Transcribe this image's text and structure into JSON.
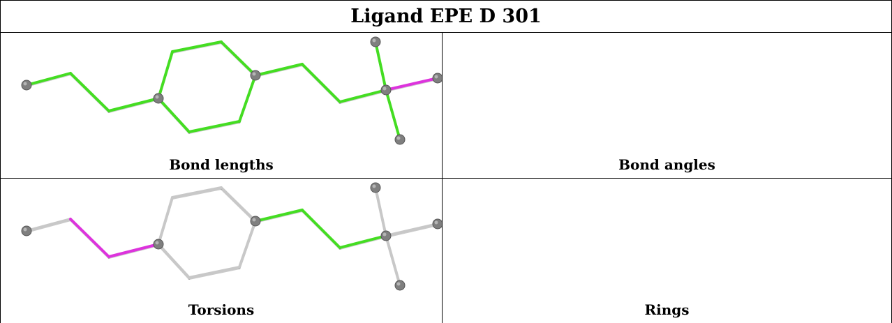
{
  "title": "Ligand EPE D 301",
  "panels": [
    {
      "caption": "Bond lengths",
      "colors": {
        "t1": "#44dd22",
        "t2": "#44dd22",
        "t3": "#44dd22",
        "r": "#44dd22",
        "u1": "#44dd22",
        "u2": "#44dd22",
        "u3": "#44dd22",
        "s1": "#44dd22",
        "s2": "#dd33dd",
        "s3": "#44dd22"
      }
    },
    {
      "caption": "Bond angles",
      "colors": {
        "t1": "#44dd22",
        "t2": "#44dd22",
        "t3": "#44dd22",
        "r": "#44dd22",
        "u1": "#44dd22",
        "u2": "#44dd22",
        "u3": "#dd33dd",
        "s1": "#dd33dd",
        "s2": "#44dd22",
        "s3": "#44dd22"
      }
    },
    {
      "caption": "Torsions",
      "colors": {
        "t1": "#c8c8c8",
        "t2": "#dd33dd",
        "t3": "#dd33dd",
        "r": "#c8c8c8",
        "u1": "#44dd22",
        "u2": "#44dd22",
        "u3": "#44dd22",
        "s1": "#c8c8c8",
        "s2": "#c8c8c8",
        "s3": "#c8c8c8"
      }
    },
    {
      "caption": "Rings",
      "colors": {
        "t1": "#c8c8c8",
        "t2": "#c8c8c8",
        "t3": "#c8c8c8",
        "r": "#44dd22",
        "u1": "#c8c8c8",
        "u2": "#c8c8c8",
        "u3": "#c8c8c8",
        "s1": "#c8c8c8",
        "s2": "#c8c8c8",
        "s3": "#c8c8c8"
      }
    }
  ]
}
